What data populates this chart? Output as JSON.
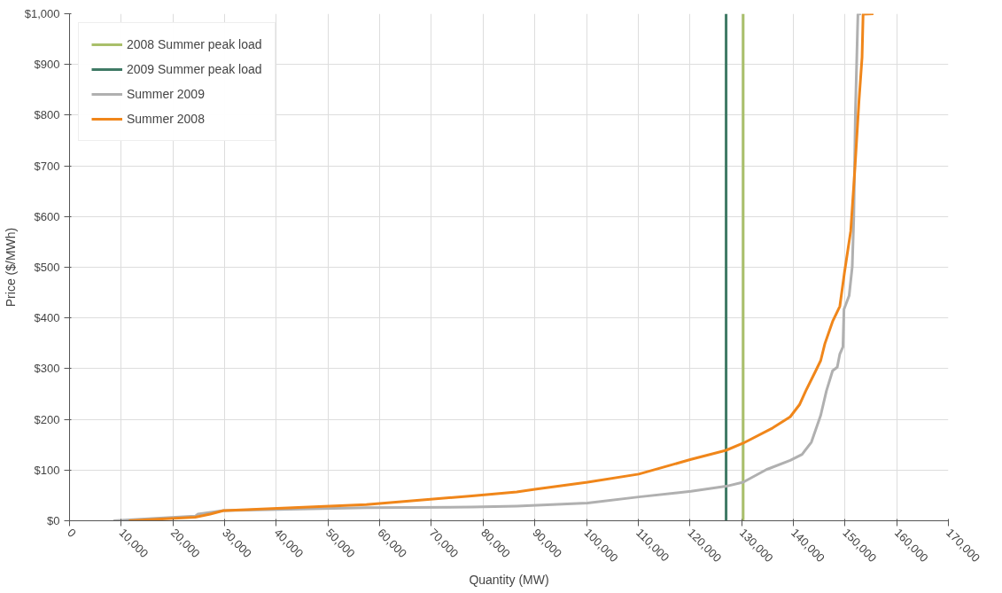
{
  "chart_data": {
    "type": "line",
    "xlabel": "Quantity (MW)",
    "ylabel": "Price ($/MWh)",
    "xlim": [
      0,
      170000
    ],
    "ylim": [
      0,
      1000
    ],
    "xticks": [
      0,
      {
        "value": 10000,
        "label": "10,000"
      },
      {
        "value": 20000,
        "label": "20,000"
      },
      {
        "value": 30000,
        "label": "30,000"
      },
      {
        "value": 40000,
        "label": "40,000"
      },
      {
        "value": 50000,
        "label": "50,000"
      },
      {
        "value": 60000,
        "label": "60,000"
      },
      {
        "value": 70000,
        "label": "70,000"
      },
      {
        "value": 80000,
        "label": "80,000"
      },
      {
        "value": 90000,
        "label": "90,000"
      },
      {
        "value": 100000,
        "label": "100,000"
      },
      {
        "value": 110000,
        "label": "110,000"
      },
      {
        "value": 120000,
        "label": "120,000"
      },
      {
        "value": 130000,
        "label": "130,000"
      },
      {
        "value": 140000,
        "label": "140,000"
      },
      {
        "value": 150000,
        "label": "150,000"
      },
      {
        "value": 160000,
        "label": "160,000"
      },
      {
        "value": 170000,
        "label": "170,000"
      }
    ],
    "yticks": [
      {
        "value": 0,
        "label": "$0"
      },
      {
        "value": 100,
        "label": "$100"
      },
      {
        "value": 200,
        "label": "$200"
      },
      {
        "value": 300,
        "label": "$300"
      },
      {
        "value": 400,
        "label": "$400"
      },
      {
        "value": 500,
        "label": "$500"
      },
      {
        "value": 600,
        "label": "$600"
      },
      {
        "value": 700,
        "label": "$700"
      },
      {
        "value": 800,
        "label": "$800"
      },
      {
        "value": 900,
        "label": "$900"
      },
      {
        "value": 1000,
        "label": "$1,000"
      }
    ],
    "grid": true,
    "legend": "top left",
    "line_style": "solid",
    "marker": "none",
    "series": [
      {
        "name": "2008 Summer peak load",
        "color": "#a9bf6a",
        "x": [
          130300,
          130300
        ],
        "values": [
          0,
          1000
        ]
      },
      {
        "name": "2009 Summer peak load",
        "color": "#3f7a65",
        "x": [
          127000,
          127000
        ],
        "values": [
          0,
          1000
        ]
      },
      {
        "name": "Summer 2009",
        "color": "#b0b0b0",
        "x": [
          8500,
          24300,
          24800,
          29800,
          57400,
          77800,
          86500,
          100200,
          110100,
          120200,
          127000,
          130300,
          134800,
          139400,
          141700,
          143500,
          145300,
          146400,
          147600,
          148500,
          149000,
          149600,
          149800,
          150800,
          151400,
          151700,
          152000,
          152400,
          152500,
          153100
        ],
        "values": [
          0,
          9,
          13,
          20,
          26,
          27,
          29,
          35,
          47,
          58,
          68,
          76,
          101,
          119,
          131,
          155,
          208,
          256,
          296,
          303,
          329,
          343,
          417,
          444,
          501,
          598,
          800,
          961,
          999,
          1000
        ]
      },
      {
        "name": "Summer 2008",
        "color": "#f0861a",
        "x": [
          11500,
          24300,
          27200,
          29800,
          57400,
          77800,
          86500,
          90000,
          100200,
          110100,
          120200,
          127000,
          130300,
          136000,
          139400,
          141200,
          142400,
          144300,
          145300,
          146100,
          147600,
          149000,
          149900,
          151100,
          151900,
          152700,
          153300,
          153500,
          155500
        ],
        "values": [
          0,
          7,
          13,
          20,
          32,
          49,
          57,
          62,
          76,
          92,
          121,
          139,
          153,
          183,
          205,
          229,
          256,
          295,
          316,
          349,
          393,
          423,
          490,
          571,
          692,
          827,
          914,
          999,
          1000
        ]
      }
    ]
  }
}
